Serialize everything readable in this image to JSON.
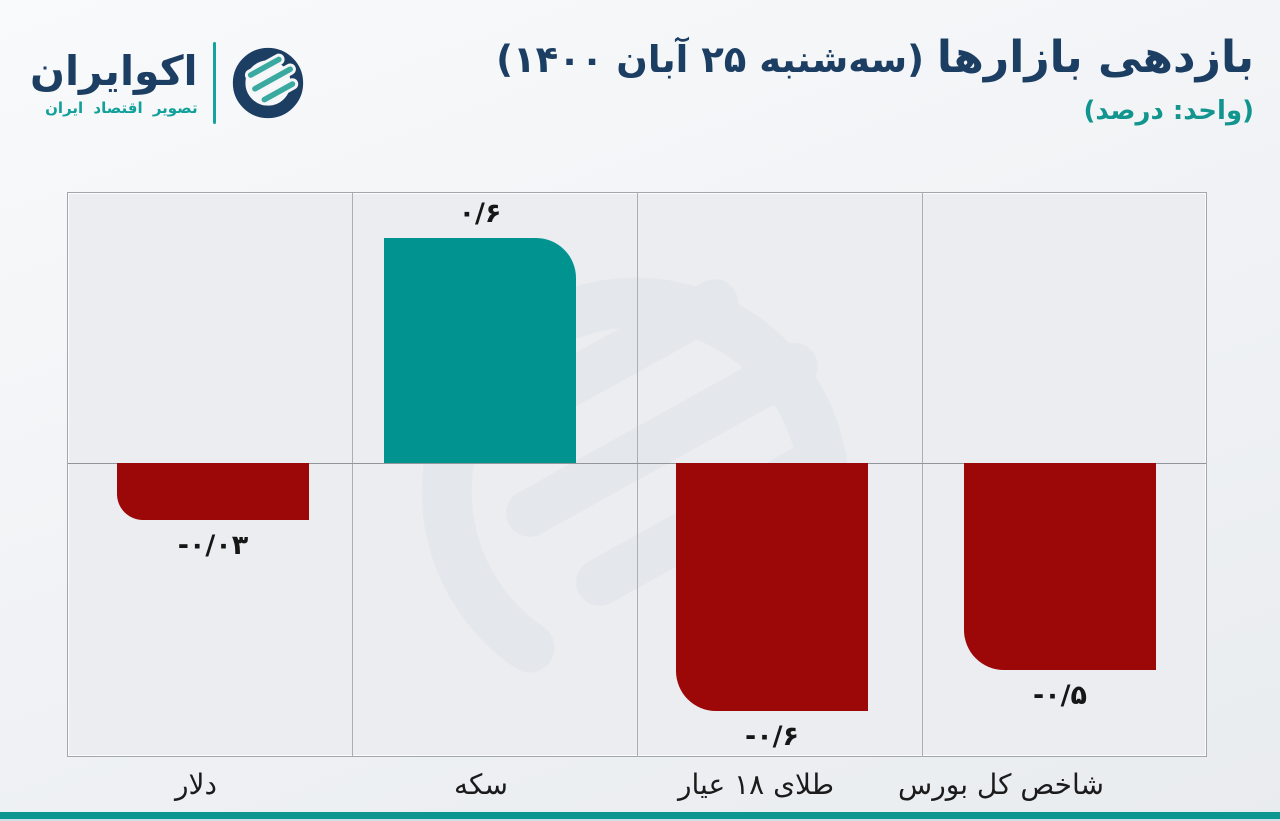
{
  "logo": {
    "name": "اکوایران",
    "tagline": "تصویر اقتصاد ایران"
  },
  "header": {
    "title_main": "بازدهی بازارها",
    "title_date": " (سه‌شنبه ۲۵ آبان ۱۴۰۰)",
    "unit_note": "(واحد: درصد)"
  },
  "chart_data": {
    "type": "bar",
    "title": "بازدهی بازارها (سه‌شنبه ۲۵ آبان ۱۴۰۰)",
    "unit": "درصد",
    "categories": [
      "دلار",
      "سکه",
      "طلای ۱۸ عیار",
      "شاخص کل بورس"
    ],
    "values": [
      -0.03,
      0.6,
      -0.6,
      -0.5
    ],
    "value_labels": [
      "-۰/۰۳",
      "۰/۶",
      "-۰/۶",
      "-۰/۵"
    ],
    "bar_names": [
      "dollar",
      "coin",
      "gold-18k",
      "stock-index"
    ],
    "positive_color": "#009390",
    "negative_color": "#9c0808",
    "baseline": 0,
    "ylim": [
      -0.75,
      0.75
    ],
    "grid": "column-separators",
    "legend": "none"
  },
  "colors": {
    "navy": "#1d3e63",
    "teal": "#12a09a",
    "negative_red": "#9c0808",
    "plot_bg": "#ebedf0",
    "grid_line": "#abaeb3",
    "footer_strip": "#0d9690"
  }
}
